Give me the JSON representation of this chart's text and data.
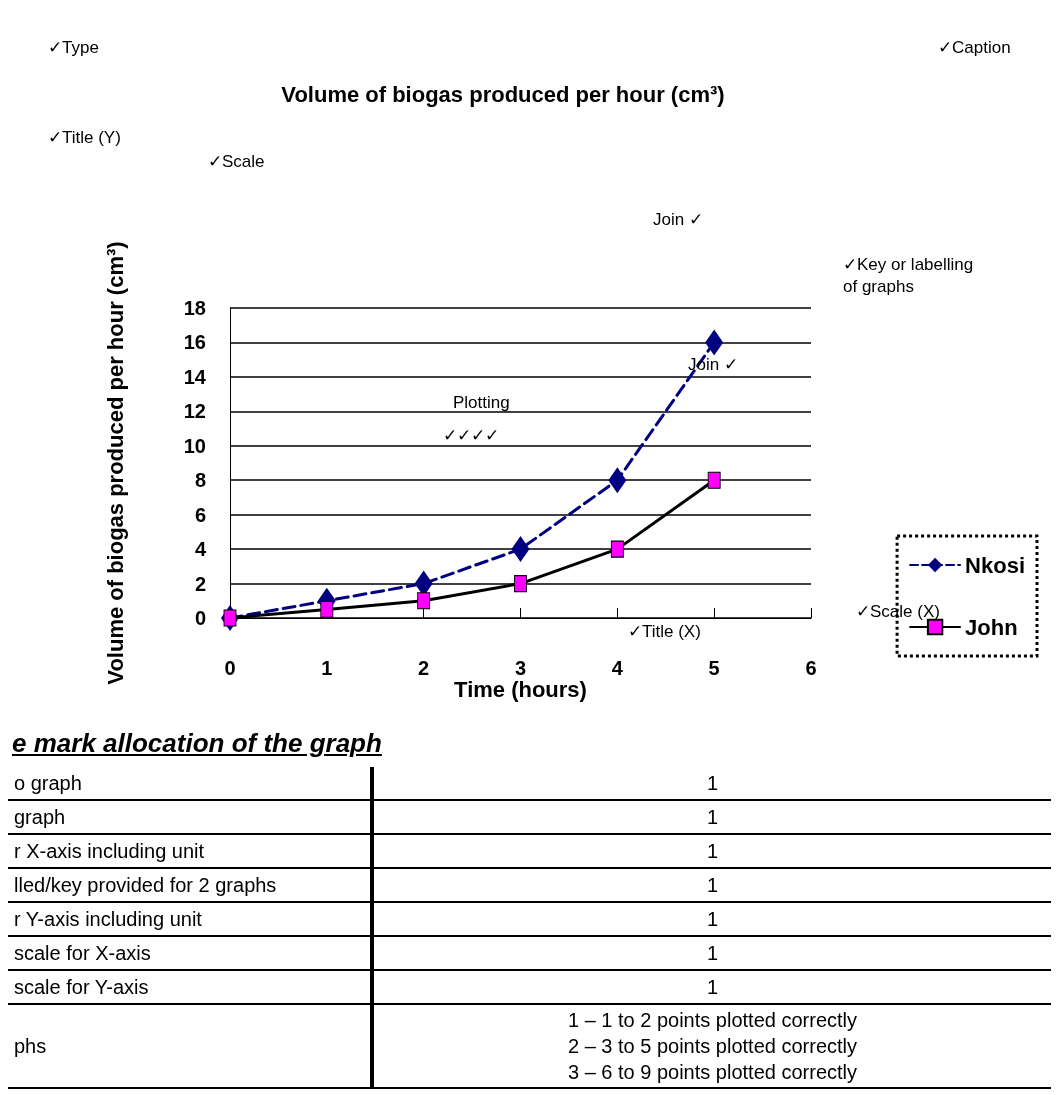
{
  "chart_data": {
    "type": "line",
    "title": "Volume of biogas produced per hour (cm³)",
    "xlabel": "Time (hours)",
    "ylabel": "Volume of biogas produced per hour (cm³)",
    "x": [
      0,
      1,
      2,
      3,
      4,
      5
    ],
    "xlim": [
      0,
      6
    ],
    "xticks": [
      0,
      1,
      2,
      3,
      4,
      5,
      6
    ],
    "ylim": [
      0,
      18
    ],
    "yticks": [
      0,
      2,
      4,
      6,
      8,
      10,
      12,
      14,
      16,
      18
    ],
    "grid": "y",
    "legend": "right",
    "series": [
      {
        "name": "Nkosi",
        "color": "#000080",
        "values": [
          0,
          1,
          2,
          4,
          8,
          16
        ],
        "marker": "diamond",
        "line_style": "dashed"
      },
      {
        "name": "John",
        "color": "#000000",
        "colors": [
          "#ff00ff",
          "#ff00ff",
          "#ff00ff",
          "#ff00ff",
          "#ff00ff",
          "#ff00ff"
        ],
        "values": [
          0,
          0.5,
          1,
          2,
          4,
          8
        ],
        "marker": "square",
        "line_style": "solid"
      }
    ],
    "annotations": [
      "✓Type",
      "✓Caption",
      "✓Title (Y)",
      "✓Scale",
      "Join ✓",
      "✓Key or labelling\nof graphs",
      "Plotting",
      "✓✓✓✓",
      "Join ✓",
      "✓Scale (X)",
      "✓Title (X)",
      "e mark allocation of the graph",
      "o graph",
      "graph",
      "r X-axis including unit",
      "lled/key provided for 2 graphs",
      "r Y-axis including unit",
      "scale for X-axis",
      "scale for Y-axis",
      "phs",
      "1",
      "1",
      "1",
      "1",
      "1",
      "1",
      "1",
      "1 – 1 to 2 points plotted correctly",
      "2 – 3 to 5 points plotted correctly",
      "3 – 6 to 9 points plotted correctly"
    ]
  }
}
